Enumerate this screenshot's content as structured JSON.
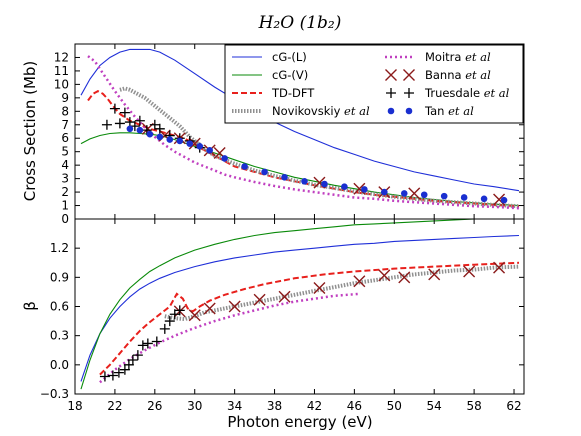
{
  "chart_data": {
    "type": "line",
    "title": "H₂O (1b₂)",
    "xlabel": "Photon energy (eV)",
    "xlim": [
      18,
      63
    ],
    "xticks": [
      18,
      22,
      26,
      30,
      34,
      38,
      42,
      46,
      50,
      54,
      58,
      62
    ],
    "grid": false,
    "legend_placement": "top-right of upper panel",
    "panels": [
      {
        "id": "cross",
        "ylabel": "Cross Section (Mb)",
        "ylim": [
          0,
          13
        ],
        "yticks": [
          0,
          1,
          2,
          3,
          4,
          5,
          6,
          7,
          8,
          9,
          10,
          11,
          12
        ],
        "series": [
          {
            "name": "cG-(L)",
            "style": "line",
            "color": "#1f2fd8",
            "x": [
              18.6,
              19.5,
              20.5,
              21.5,
              22.5,
              23.5,
              24.5,
              25.5,
              26.5,
              28,
              30,
              32,
              34,
              36,
              38,
              40,
              42,
              44,
              46,
              48,
              50,
              52,
              54,
              56,
              58,
              60,
              62.5
            ],
            "y": [
              9.2,
              10.4,
              11.4,
              12.0,
              12.4,
              12.6,
              12.6,
              12.6,
              12.4,
              11.8,
              10.8,
              9.8,
              8.9,
              8.0,
              7.2,
              6.5,
              5.9,
              5.3,
              4.8,
              4.3,
              3.9,
              3.5,
              3.2,
              2.9,
              2.6,
              2.4,
              2.1
            ]
          },
          {
            "name": "cG-(V)",
            "style": "line",
            "color": "#0a8a0a",
            "x": [
              18.6,
              19.5,
              20.5,
              21.5,
              22.5,
              23.5,
              24.5,
              25.5,
              26.5,
              28,
              30,
              32,
              34,
              36,
              38,
              40,
              42,
              44,
              46,
              48,
              50,
              52,
              54,
              56,
              58,
              60,
              62.5
            ],
            "y": [
              5.6,
              5.95,
              6.2,
              6.35,
              6.4,
              6.4,
              6.35,
              6.3,
              6.2,
              5.9,
              5.4,
              4.9,
              4.4,
              3.9,
              3.5,
              3.1,
              2.8,
              2.5,
              2.25,
              2.0,
              1.8,
              1.6,
              1.45,
              1.3,
              1.2,
              1.1,
              1.0
            ]
          },
          {
            "name": "TD-DFT",
            "style": "dashed",
            "color": "#e8201c",
            "x": [
              19.3,
              19.8,
              20.3,
              20.8,
              21.3,
              21.8,
              22.5,
              23.5,
              24.5,
              25.5,
              26.5,
              27.5,
              28.5,
              29.5,
              30.5,
              31.5,
              32.5,
              34,
              36,
              38,
              40,
              42,
              44,
              46,
              48,
              50,
              52,
              54,
              56,
              58,
              60,
              62.5
            ],
            "y": [
              8.8,
              9.3,
              9.5,
              9.3,
              8.9,
              8.4,
              7.8,
              7.3,
              7.0,
              6.7,
              6.5,
              6.3,
              6.1,
              5.8,
              5.3,
              4.9,
              4.5,
              3.9,
              3.5,
              3.1,
              2.8,
              2.5,
              2.25,
              2.0,
              1.8,
              1.65,
              1.5,
              1.35,
              1.25,
              1.15,
              1.05,
              0.95
            ]
          },
          {
            "name": "Novikovskiy et al",
            "style": "dotted",
            "color": "#909090",
            "x": [
              22.5,
              23,
              23.5,
              24,
              24.5,
              25,
              25.5,
              26,
              26.5,
              27,
              27.5,
              28,
              28.5,
              29,
              29.5,
              30,
              30.5,
              31,
              32,
              34,
              36,
              38,
              40,
              42,
              44,
              46,
              48,
              50,
              52,
              54,
              56,
              58,
              60,
              62.5
            ],
            "y": [
              9.6,
              9.7,
              9.6,
              9.4,
              9.2,
              9.0,
              8.7,
              8.4,
              8.1,
              7.8,
              7.5,
              7.2,
              6.9,
              6.5,
              6.1,
              5.8,
              5.5,
              5.2,
              4.7,
              4.1,
              3.6,
              3.2,
              2.85,
              2.55,
              2.3,
              2.05,
              1.85,
              1.65,
              1.5,
              1.35,
              1.25,
              1.15,
              1.05,
              0.95
            ]
          },
          {
            "name": "Moitra et al",
            "style": "dashdot",
            "color": "#c040c0",
            "x": [
              19.3,
              20,
              21,
              22,
              23,
              24,
              25,
              26,
              27,
              28,
              29,
              30,
              31,
              32,
              33,
              34,
              36,
              38,
              40,
              42,
              44,
              46,
              48,
              50,
              52,
              54,
              56,
              58,
              60,
              62.5
            ],
            "y": [
              12.1,
              11.7,
              10.6,
              9.5,
              8.5,
              7.6,
              6.8,
              6.1,
              5.5,
              5.0,
              4.6,
              4.2,
              3.9,
              3.6,
              3.3,
              3.1,
              2.75,
              2.45,
              2.2,
              2.0,
              1.8,
              1.6,
              1.5,
              1.35,
              1.25,
              1.15,
              1.05,
              0.95,
              0.9,
              0.8
            ]
          },
          {
            "name": "Banna et al",
            "style": "x-marker",
            "color": "#8b1a1a",
            "x": [
              25.3,
              27.0,
              28.5,
              30.0,
              31.5,
              32.5,
              42.5,
              46.5,
              49.0,
              52.0,
              60.5
            ],
            "y": [
              6.7,
              6.2,
              6.0,
              5.6,
              5.1,
              4.9,
              2.7,
              2.25,
              2.0,
              1.9,
              1.45
            ]
          },
          {
            "name": "Truesdale et al",
            "style": "plus-marker",
            "color": "#000000",
            "x": [
              21.2,
              22.0,
              22.5,
              23.0,
              23.5,
              24.0,
              24.5,
              25.2,
              26.0,
              26.5,
              27.5,
              28.5,
              29.5,
              30.5
            ],
            "y": [
              7.0,
              8.2,
              7.1,
              7.9,
              7.2,
              6.9,
              7.3,
              6.6,
              7.0,
              6.7,
              6.2,
              6.0,
              5.8,
              5.3
            ]
          },
          {
            "name": "Tan et al",
            "style": "dot-marker",
            "color": "#1a2fd0",
            "x": [
              23.5,
              24.5,
              25.5,
              26.5,
              27.5,
              28.5,
              29.5,
              30.5,
              31.5,
              33.0,
              35.0,
              37.0,
              39.0,
              41.0,
              43.0,
              45.0,
              47.0,
              49.0,
              51.0,
              53.0,
              55.0,
              57.0,
              59.0,
              61.0
            ],
            "y": [
              6.7,
              6.6,
              6.3,
              6.1,
              5.9,
              5.8,
              5.6,
              5.4,
              5.1,
              4.5,
              3.9,
              3.5,
              3.1,
              2.8,
              2.6,
              2.4,
              2.2,
              2.0,
              1.9,
              1.8,
              1.7,
              1.6,
              1.5,
              1.4
            ]
          }
        ]
      },
      {
        "id": "beta",
        "ylabel": "β",
        "ylim": [
          -0.3,
          1.5
        ],
        "yticks": [
          -0.3,
          0.0,
          0.3,
          0.6,
          0.9,
          1.2
        ],
        "ytick_labels": [
          "−0.3",
          "0.0",
          "0.3",
          "0.6",
          "0.9",
          "1.2"
        ],
        "series": [
          {
            "name": "cG-(L)",
            "style": "line",
            "color": "#1f2fd8",
            "x": [
              18.6,
              19.5,
              20.5,
              21.5,
              22.5,
              23.5,
              24.5,
              25.5,
              26.5,
              28,
              30,
              32,
              34,
              36,
              38,
              40,
              42,
              44,
              46,
              48,
              50,
              52,
              54,
              56,
              58,
              60,
              62.5
            ],
            "y": [
              -0.17,
              0.1,
              0.32,
              0.48,
              0.6,
              0.7,
              0.78,
              0.84,
              0.89,
              0.95,
              1.01,
              1.06,
              1.1,
              1.13,
              1.16,
              1.18,
              1.2,
              1.22,
              1.24,
              1.25,
              1.27,
              1.28,
              1.29,
              1.3,
              1.31,
              1.32,
              1.33
            ]
          },
          {
            "name": "cG-(V)",
            "style": "line",
            "color": "#0a8a0a",
            "x": [
              18.6,
              19.5,
              20.5,
              21.5,
              22.5,
              23.5,
              24.5,
              25.5,
              26.5,
              28,
              30,
              32,
              34,
              36,
              38,
              40,
              42,
              44,
              46,
              48,
              50,
              52,
              54,
              56,
              58,
              60,
              62.5
            ],
            "y": [
              -0.25,
              0.05,
              0.32,
              0.52,
              0.67,
              0.79,
              0.88,
              0.96,
              1.02,
              1.1,
              1.18,
              1.24,
              1.29,
              1.33,
              1.36,
              1.38,
              1.4,
              1.42,
              1.44,
              1.45,
              1.46,
              1.47,
              1.48,
              1.49,
              1.5,
              1.5,
              1.51
            ]
          },
          {
            "name": "TD-DFT",
            "style": "dashed",
            "color": "#e8201c",
            "x": [
              20.5,
              21.5,
              22.5,
              23.5,
              24.5,
              25.5,
              26.5,
              27.5,
              28.2,
              28.8,
              29.3,
              29.8,
              30.5,
              31.5,
              33,
              35,
              37,
              40,
              43,
              46,
              50,
              54,
              58,
              62.5
            ],
            "y": [
              -0.1,
              0.0,
              0.12,
              0.24,
              0.35,
              0.44,
              0.52,
              0.6,
              0.73,
              0.68,
              0.58,
              0.55,
              0.6,
              0.66,
              0.72,
              0.78,
              0.83,
              0.89,
              0.93,
              0.96,
              0.99,
              1.01,
              1.03,
              1.05
            ]
          },
          {
            "name": "Novikovskiy et al",
            "style": "dotted",
            "color": "#909090",
            "x": [
              27,
              28,
              29,
              30,
              31,
              32,
              34,
              36,
              38,
              40,
              42,
              44,
              46,
              48,
              50,
              52,
              54,
              56,
              58,
              60,
              62.5
            ],
            "y": [
              0.5,
              0.48,
              0.47,
              0.5,
              0.54,
              0.56,
              0.6,
              0.64,
              0.68,
              0.72,
              0.76,
              0.8,
              0.84,
              0.87,
              0.9,
              0.93,
              0.95,
              0.97,
              0.98,
              1.0,
              1.01
            ]
          },
          {
            "name": "Moitra et al",
            "style": "dashdot",
            "color": "#c040c0",
            "x": [
              20.5,
              22,
              23.5,
              25,
              26.5,
              28,
              30,
              32,
              34,
              36,
              38,
              40,
              42,
              44,
              46.5
            ],
            "y": [
              -0.18,
              -0.05,
              0.06,
              0.15,
              0.23,
              0.3,
              0.38,
              0.45,
              0.51,
              0.56,
              0.61,
              0.65,
              0.68,
              0.71,
              0.73
            ]
          },
          {
            "name": "Banna et al",
            "style": "x-marker",
            "color": "#8b1a1a",
            "x": [
              28.5,
              30.0,
              31.5,
              34.0,
              36.5,
              39.0,
              42.5,
              46.5,
              49.0,
              51.0,
              54.0,
              57.5,
              60.5
            ],
            "y": [
              0.55,
              0.51,
              0.58,
              0.6,
              0.67,
              0.7,
              0.79,
              0.86,
              0.92,
              0.9,
              0.93,
              0.96,
              1.0
            ]
          },
          {
            "name": "Truesdale et al",
            "style": "plus-marker",
            "color": "#000000",
            "x": [
              21.0,
              21.8,
              22.4,
              23.0,
              23.4,
              23.8,
              24.3,
              24.8,
              25.3,
              26.2,
              27.0,
              27.5,
              28.0,
              28.5
            ],
            "y": [
              -0.12,
              -0.11,
              -0.08,
              -0.05,
              0.0,
              0.05,
              0.1,
              0.2,
              0.22,
              0.24,
              0.37,
              0.45,
              0.52,
              0.56
            ]
          }
        ]
      }
    ]
  }
}
